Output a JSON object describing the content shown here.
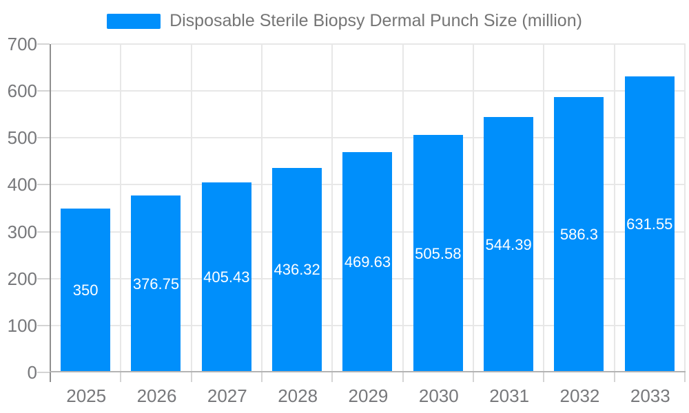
{
  "chart_data": {
    "type": "bar",
    "title": "Disposable Sterile Biopsy Dermal Punch Size (million)",
    "legend_position": "top",
    "grid": true,
    "categories": [
      "2025",
      "2026",
      "2027",
      "2028",
      "2029",
      "2030",
      "2031",
      "2032",
      "2033"
    ],
    "values": [
      350,
      376.75,
      405.43,
      436.32,
      469.63,
      505.58,
      544.39,
      586.3,
      631.55
    ],
    "value_labels": [
      "350",
      "376.75",
      "405.43",
      "436.32",
      "469.63",
      "505.58",
      "544.39",
      "586.3",
      "631.55"
    ],
    "series_name": "Disposable Sterile Biopsy Dermal Punch Size (million)",
    "xlabel": "",
    "ylabel": "",
    "ylim": [
      0,
      700
    ],
    "yticks": [
      0,
      100,
      200,
      300,
      400,
      500,
      600,
      700
    ],
    "ytick_labels": [
      "0",
      "100",
      "200",
      "300",
      "400",
      "500",
      "600",
      "700"
    ],
    "colors": {
      "bar": "#008FFB",
      "value_label": "#ffffff",
      "axis_text": "#77787b",
      "legend_text": "#757575",
      "gridline": "#e7e7e7",
      "x_axis_line": "#b3b3b3",
      "y_axis_line": "#8f8f8f",
      "tick": "#d4d4d4",
      "background": "#ffffff"
    }
  }
}
